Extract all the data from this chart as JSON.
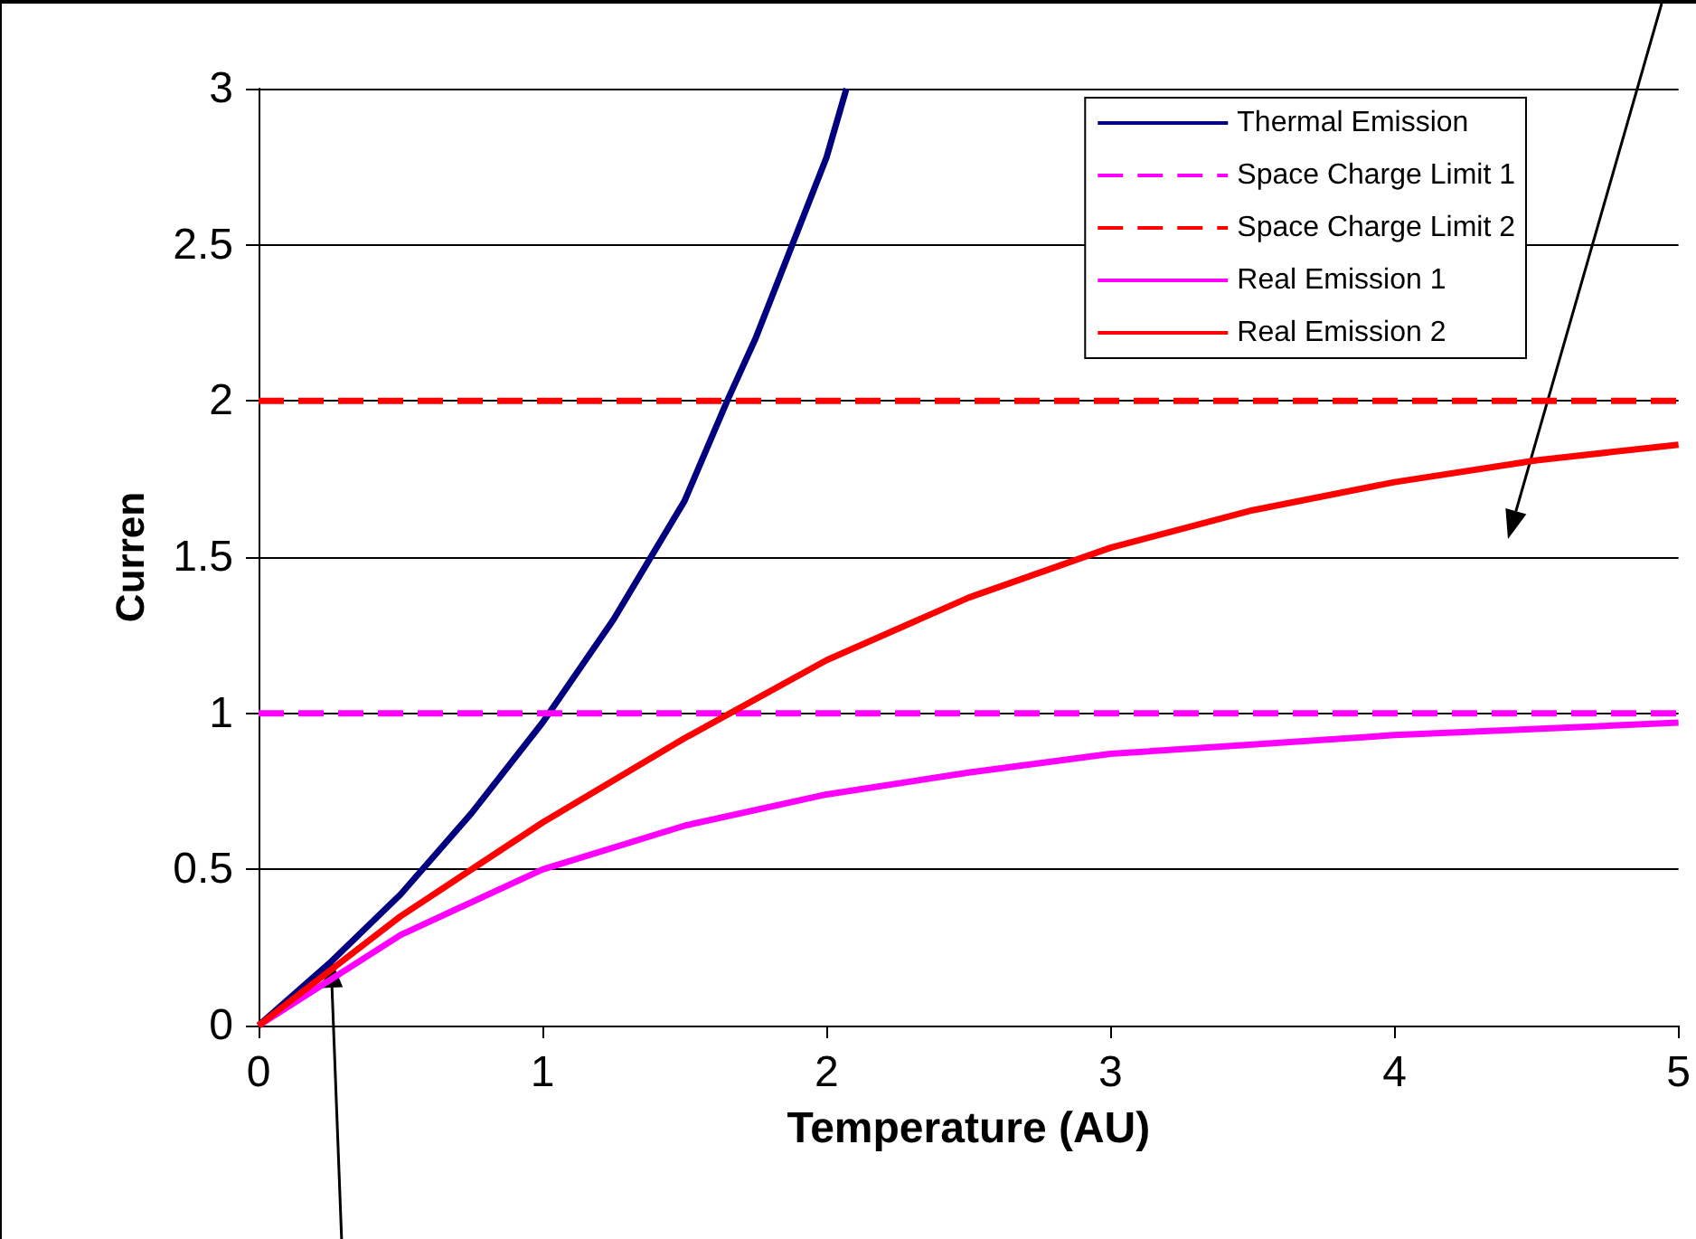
{
  "chart_data": {
    "type": "line",
    "xlabel": "Temperature (AU)",
    "ylabel": "Curren",
    "xlim": [
      0,
      5
    ],
    "xticks": [
      0,
      1,
      2,
      3,
      4,
      5
    ],
    "ylim": [
      0,
      3
    ],
    "yticks": [
      0,
      0.5,
      1,
      1.5,
      2,
      2.5,
      3
    ],
    "grid": "y",
    "legend": "top right",
    "marker": "none",
    "series": [
      {
        "name": "Thermal Emission",
        "color": "#000080",
        "line_style": "solid",
        "x": [
          0,
          0.25,
          0.5,
          0.75,
          1,
          1.25,
          1.5,
          1.65,
          1.75,
          2,
          2.07
        ],
        "values": [
          0,
          0.2,
          0.42,
          0.68,
          0.97,
          1.3,
          1.68,
          2,
          2.2,
          2.78,
          3
        ]
      },
      {
        "name": "Space Charge Limit 1",
        "color": "#ff00ff",
        "line_style": "dashed",
        "x": [
          0,
          5
        ],
        "values": [
          1,
          1
        ]
      },
      {
        "name": "Space Charge Limit 2",
        "color": "#ff0000",
        "line_style": "dashed",
        "x": [
          0,
          5
        ],
        "values": [
          2,
          2
        ]
      },
      {
        "name": "Real Emission 1",
        "color": "#ff00ff",
        "line_style": "solid",
        "x": [
          0,
          0.5,
          1,
          1.5,
          2,
          2.5,
          3,
          3.5,
          4,
          4.5,
          5
        ],
        "values": [
          0,
          0.29,
          0.5,
          0.64,
          0.74,
          0.81,
          0.87,
          0.9,
          0.93,
          0.95,
          0.97
        ]
      },
      {
        "name": "Real Emission 2",
        "color": "#ff0000",
        "line_style": "solid",
        "x": [
          0,
          0.5,
          1,
          1.5,
          2,
          2.5,
          3,
          3.5,
          4,
          4.5,
          5
        ],
        "values": [
          0,
          0.35,
          0.65,
          0.92,
          1.17,
          1.37,
          1.53,
          1.65,
          1.74,
          1.81,
          1.86
        ]
      }
    ]
  }
}
